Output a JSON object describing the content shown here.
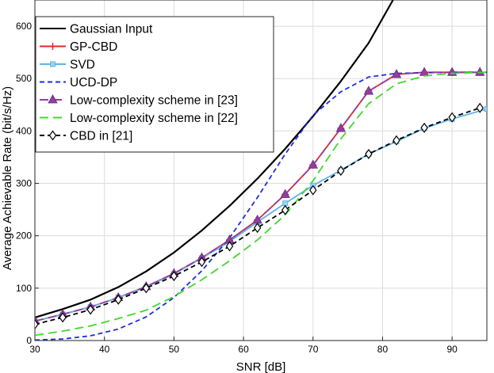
{
  "chart_data": {
    "type": "line",
    "title": "",
    "xlabel": "SNR [dB]",
    "ylabel": "Average Achievable Rate (bit/s/Hz)",
    "xlim": [
      30,
      95
    ],
    "ylim": [
      0,
      650
    ],
    "xticks": [
      30,
      40,
      50,
      60,
      70,
      80,
      90
    ],
    "yticks": [
      0,
      100,
      200,
      300,
      400,
      500,
      600
    ],
    "grid": true,
    "legend_position": "top-left",
    "series": [
      {
        "name": "Gaussian Input",
        "color": "#000000",
        "dash": "solid",
        "marker": "none",
        "x": [
          30,
          34,
          38,
          42,
          46,
          50,
          54,
          58,
          62,
          66,
          70,
          74,
          78,
          81.5
        ],
        "y": [
          44,
          60,
          78,
          102,
          132,
          168,
          210,
          257,
          309,
          366,
          428,
          495,
          568,
          650
        ]
      },
      {
        "name": "GP-CBD",
        "color": "#e8262a",
        "dash": "solid",
        "marker": "plus",
        "x": [
          30,
          34,
          38,
          42,
          46,
          50,
          54,
          58,
          62,
          66,
          70,
          74,
          78,
          82,
          86,
          90,
          94
        ],
        "y": [
          37,
          50,
          64,
          82,
          103,
          128,
          158,
          192,
          230,
          279,
          335,
          405,
          476,
          508,
          512,
          512,
          512
        ]
      },
      {
        "name": "SVD",
        "color": "#5fb4e6",
        "dash": "solid",
        "marker": "square",
        "x": [
          30,
          34,
          38,
          42,
          46,
          50,
          54,
          58,
          62,
          66,
          70,
          74,
          78,
          82,
          86,
          90,
          95
        ],
        "y": [
          37,
          50,
          64,
          82,
          102,
          127,
          157,
          189,
          226,
          262,
          296,
          325,
          356,
          380,
          405,
          423,
          442
        ]
      },
      {
        "name": "UCD-DP",
        "color": "#1f2fd8",
        "dash": "short",
        "marker": "none",
        "x": [
          30,
          34,
          38,
          42,
          46,
          50,
          54,
          58,
          62,
          66,
          70,
          74,
          78,
          82,
          86,
          90,
          95
        ],
        "y": [
          1,
          3,
          9,
          22,
          45,
          82,
          133,
          196,
          273,
          356,
          430,
          475,
          503,
          510,
          511,
          512,
          512
        ]
      },
      {
        "name": "Low-complexity scheme in [23]",
        "color": "#8e3fa0",
        "dash": "long",
        "marker": "triangle",
        "x": [
          30,
          34,
          38,
          42,
          46,
          50,
          54,
          58,
          62,
          66,
          70,
          74,
          78,
          82,
          86,
          90,
          94
        ],
        "y": [
          37,
          50,
          64,
          82,
          103,
          128,
          158,
          192,
          230,
          279,
          335,
          405,
          476,
          508,
          512,
          512,
          512
        ]
      },
      {
        "name": "Low-complexity scheme in [22]",
        "color": "#3fd92e",
        "dash": "long",
        "marker": "none",
        "x": [
          30,
          34,
          38,
          42,
          46,
          50,
          54,
          58,
          62,
          66,
          70,
          74,
          78,
          82,
          86,
          90,
          95
        ],
        "y": [
          10,
          18,
          28,
          42,
          58,
          84,
          116,
          152,
          192,
          240,
          305,
          385,
          452,
          490,
          505,
          510,
          512
        ]
      },
      {
        "name": "CBD in [21]",
        "color": "#000000",
        "dash": "short",
        "marker": "diamond",
        "x": [
          30,
          34,
          38,
          42,
          46,
          50,
          54,
          58,
          62,
          66,
          70,
          74,
          78,
          82,
          86,
          90,
          94
        ],
        "y": [
          31,
          44,
          59,
          78,
          100,
          123,
          150,
          180,
          215,
          249,
          287,
          324,
          356,
          382,
          406,
          426,
          444
        ]
      }
    ]
  }
}
